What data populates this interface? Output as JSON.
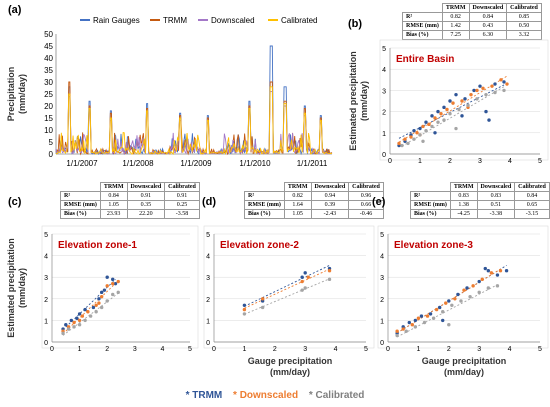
{
  "panels": {
    "a": "(a)",
    "b": "(b)",
    "c": "(c)",
    "d": "(d)",
    "e": "(e)"
  },
  "stats_headers": [
    "TRMM",
    "Downscaled",
    "Calibrated"
  ],
  "stats": {
    "b": {
      "rows": [
        {
          "name": "R²",
          "vals": [
            "0.82",
            "0.84",
            "0.85"
          ]
        },
        {
          "name": "RMSE (mm)",
          "vals": [
            "1.42",
            "0.43",
            "0.50"
          ]
        },
        {
          "name": "Bias (%)",
          "vals": [
            "7.25",
            "6.30",
            "3.32"
          ]
        }
      ]
    },
    "c": {
      "rows": [
        {
          "name": "R²",
          "vals": [
            "0.84",
            "0.91",
            "0.91"
          ]
        },
        {
          "name": "RMSE (mm)",
          "vals": [
            "1.05",
            "0.35",
            "0.25"
          ]
        },
        {
          "name": "Bias (%)",
          "vals": [
            "23.93",
            "22.20",
            "-3.58"
          ]
        }
      ]
    },
    "d": {
      "rows": [
        {
          "name": "R²",
          "vals": [
            "0.82",
            "0.94",
            "0.96"
          ]
        },
        {
          "name": "RMSE (mm)",
          "vals": [
            "1.64",
            "0.39",
            "0.66"
          ]
        },
        {
          "name": "Bias (%)",
          "vals": [
            "1.05",
            "-2.43",
            "-0.46"
          ]
        }
      ]
    },
    "e": {
      "rows": [
        {
          "name": "R²",
          "vals": [
            "0.83",
            "0.83",
            "0.84"
          ]
        },
        {
          "name": "RMSE (mm)",
          "vals": [
            "1.38",
            "0.51",
            "0.65"
          ]
        },
        {
          "name": "Bias (%)",
          "vals": [
            "-4.25",
            "-3.38",
            "-3.15"
          ]
        }
      ]
    }
  },
  "bottom_legend": [
    "* TRMM",
    "* Downscaled",
    "* Calibrated"
  ],
  "colors": {
    "gauge": "#4472C4",
    "trmm": "#C55A11",
    "downscaled": "#A478C8",
    "calibrated": "#FFC000",
    "trmm_pt": "#2F5597",
    "down_pt": "#ED7D31",
    "cal_pt": "#A5A5A5",
    "title_red": "#C00000",
    "grid": "#D9D9D9"
  },
  "chart_data": [
    {
      "type": "line",
      "id": "a",
      "title": "",
      "xlabel": "",
      "ylabel": "Precipitation\n(mm/day)",
      "ylim": [
        0,
        50
      ],
      "yticks": [
        0,
        5,
        10,
        15,
        20,
        25,
        30,
        35,
        40,
        45,
        50
      ],
      "xticks": [
        "1/1/2007",
        "1/1/2008",
        "1/1/2009",
        "1/1/2010",
        "1/1/2011"
      ],
      "legend": [
        "Rain Gauges",
        "TRMM",
        "Downscaled",
        "Calibrated"
      ],
      "legend_placement": "top",
      "series": [
        {
          "name": "Rain Gauges",
          "peaks": [
            [
              0.05,
              28
            ],
            [
              0.12,
              22
            ],
            [
              0.2,
              18
            ],
            [
              0.33,
              21
            ],
            [
              0.45,
              17
            ],
            [
              0.55,
              16
            ],
            [
              0.7,
              22
            ],
            [
              0.78,
              45
            ],
            [
              0.83,
              28
            ],
            [
              0.9,
              20
            ],
            [
              0.96,
              16
            ]
          ]
        },
        {
          "name": "TRMM",
          "peaks": [
            [
              0.05,
              30
            ],
            [
              0.12,
              20
            ],
            [
              0.2,
              17
            ],
            [
              0.33,
              19
            ],
            [
              0.45,
              16
            ],
            [
              0.55,
              15
            ],
            [
              0.7,
              20
            ],
            [
              0.78,
              30
            ],
            [
              0.83,
              22
            ],
            [
              0.9,
              19
            ],
            [
              0.96,
              15
            ]
          ]
        },
        {
          "name": "Downscaled",
          "peaks": [
            [
              0.05,
              24
            ],
            [
              0.12,
              18
            ],
            [
              0.2,
              14
            ],
            [
              0.33,
              17
            ],
            [
              0.45,
              14
            ],
            [
              0.55,
              13
            ],
            [
              0.7,
              18
            ],
            [
              0.78,
              26
            ],
            [
              0.83,
              20
            ],
            [
              0.9,
              16
            ],
            [
              0.96,
              13
            ]
          ]
        },
        {
          "name": "Calibrated",
          "peaks": [
            [
              0.05,
              25
            ],
            [
              0.12,
              19
            ],
            [
              0.2,
              15
            ],
            [
              0.33,
              18
            ],
            [
              0.45,
              15
            ],
            [
              0.55,
              14
            ],
            [
              0.7,
              19
            ],
            [
              0.78,
              28
            ],
            [
              0.83,
              21
            ],
            [
              0.9,
              17
            ],
            [
              0.96,
              14
            ]
          ]
        }
      ]
    },
    {
      "type": "scatter",
      "id": "b",
      "title": "Entire Basin",
      "xlabel": "",
      "ylabel": "Estimated precipitation\n(mm/day)",
      "xlim": [
        0,
        5
      ],
      "ylim": [
        0,
        5
      ],
      "series": [
        {
          "name": "TRMM",
          "points": [
            [
              0.3,
              0.4
            ],
            [
              0.5,
              0.6
            ],
            [
              0.7,
              0.9
            ],
            [
              0.8,
              1.1
            ],
            [
              1.0,
              1.2
            ],
            [
              1.2,
              1.5
            ],
            [
              1.4,
              1.8
            ],
            [
              1.6,
              2.0
            ],
            [
              1.8,
              2.2
            ],
            [
              2.0,
              2.5
            ],
            [
              2.2,
              2.8
            ],
            [
              2.5,
              2.6
            ],
            [
              2.8,
              3.0
            ],
            [
              3.0,
              3.2
            ],
            [
              3.2,
              2.0
            ],
            [
              3.3,
              1.6
            ],
            [
              3.5,
              3.3
            ],
            [
              3.8,
              3.4
            ],
            [
              1.5,
              1.0
            ],
            [
              2.4,
              1.8
            ]
          ]
        },
        {
          "name": "Downscaled",
          "points": [
            [
              0.3,
              0.5
            ],
            [
              0.5,
              0.7
            ],
            [
              0.7,
              0.8
            ],
            [
              0.9,
              1.0
            ],
            [
              1.1,
              1.3
            ],
            [
              1.3,
              1.4
            ],
            [
              1.5,
              1.7
            ],
            [
              1.7,
              1.9
            ],
            [
              1.9,
              2.1
            ],
            [
              2.1,
              2.4
            ],
            [
              2.4,
              2.5
            ],
            [
              2.7,
              2.8
            ],
            [
              2.9,
              3.0
            ],
            [
              3.1,
              3.1
            ],
            [
              3.4,
              3.2
            ],
            [
              3.7,
              3.5
            ],
            [
              3.9,
              3.3
            ],
            [
              1.0,
              0.9
            ],
            [
              2.6,
              2.2
            ]
          ]
        },
        {
          "name": "Calibrated",
          "points": [
            [
              0.4,
              0.4
            ],
            [
              0.6,
              0.5
            ],
            [
              0.8,
              0.7
            ],
            [
              1.0,
              0.9
            ],
            [
              1.2,
              1.1
            ],
            [
              1.4,
              1.3
            ],
            [
              1.6,
              1.5
            ],
            [
              1.8,
              1.6
            ],
            [
              2.0,
              1.9
            ],
            [
              2.3,
              2.1
            ],
            [
              2.6,
              2.3
            ],
            [
              2.9,
              2.6
            ],
            [
              3.2,
              2.8
            ],
            [
              3.5,
              2.9
            ],
            [
              3.8,
              3.0
            ],
            [
              2.2,
              1.2
            ],
            [
              1.1,
              0.6
            ]
          ]
        }
      ]
    },
    {
      "type": "scatter",
      "id": "c",
      "title": "Elevation zone-1",
      "xlabel": "",
      "ylabel": "Estimated precipitation\n(mm/day)",
      "xlim": [
        0,
        5
      ],
      "ylim": [
        0,
        5
      ],
      "series": [
        {
          "name": "TRMM",
          "points": [
            [
              0.4,
              0.6
            ],
            [
              0.5,
              0.8
            ],
            [
              0.7,
              1.0
            ],
            [
              0.9,
              1.1
            ],
            [
              1.0,
              1.3
            ],
            [
              1.2,
              1.5
            ],
            [
              1.5,
              1.6
            ],
            [
              1.7,
              2.0
            ],
            [
              1.8,
              2.3
            ],
            [
              2.0,
              3.0
            ],
            [
              2.2,
              2.9
            ],
            [
              2.3,
              2.7
            ],
            [
              1.9,
              2.4
            ]
          ]
        },
        {
          "name": "Downscaled",
          "points": [
            [
              0.4,
              0.5
            ],
            [
              0.6,
              0.7
            ],
            [
              0.8,
              0.9
            ],
            [
              1.0,
              1.0
            ],
            [
              1.1,
              1.2
            ],
            [
              1.3,
              1.4
            ],
            [
              1.6,
              1.7
            ],
            [
              1.8,
              2.1
            ],
            [
              2.0,
              2.6
            ],
            [
              2.2,
              2.7
            ],
            [
              2.4,
              2.8
            ],
            [
              1.7,
              1.8
            ]
          ]
        },
        {
          "name": "Calibrated",
          "points": [
            [
              0.4,
              0.4
            ],
            [
              0.6,
              0.6
            ],
            [
              0.8,
              0.7
            ],
            [
              1.0,
              0.8
            ],
            [
              1.2,
              1.0
            ],
            [
              1.4,
              1.2
            ],
            [
              1.6,
              1.4
            ],
            [
              1.8,
              1.6
            ],
            [
              2.0,
              1.9
            ],
            [
              2.2,
              2.2
            ],
            [
              2.4,
              2.3
            ]
          ]
        }
      ]
    },
    {
      "type": "scatter",
      "id": "d",
      "title": "Elevation zone-2",
      "xlabel": "Gauge precipitation\n(mm/day)",
      "ylabel": "",
      "xlim": [
        0,
        5
      ],
      "ylim": [
        0,
        5
      ],
      "series": [
        {
          "name": "TRMM",
          "points": [
            [
              1.0,
              1.7
            ],
            [
              1.6,
              1.9
            ],
            [
              2.9,
              3.0
            ],
            [
              3.0,
              3.2
            ],
            [
              3.8,
              3.4
            ]
          ]
        },
        {
          "name": "Downscaled",
          "points": [
            [
              1.0,
              1.5
            ],
            [
              1.6,
              2.0
            ],
            [
              2.9,
              2.8
            ],
            [
              3.1,
              3.0
            ],
            [
              3.8,
              3.3
            ]
          ]
        },
        {
          "name": "Calibrated",
          "points": [
            [
              1.0,
              1.3
            ],
            [
              1.6,
              1.6
            ],
            [
              2.9,
              2.4
            ],
            [
              3.0,
              2.5
            ],
            [
              3.8,
              2.9
            ]
          ]
        }
      ]
    },
    {
      "type": "scatter",
      "id": "e",
      "title": "Elevation zone-3",
      "xlabel": "Gauge precipitation\n(mm/day)",
      "ylabel": "",
      "xlim": [
        0,
        5
      ],
      "ylim": [
        0,
        5
      ],
      "series": [
        {
          "name": "TRMM",
          "points": [
            [
              0.3,
              0.4
            ],
            [
              0.5,
              0.7
            ],
            [
              0.7,
              0.9
            ],
            [
              0.9,
              1.0
            ],
            [
              1.1,
              1.2
            ],
            [
              1.4,
              1.3
            ],
            [
              1.7,
              1.6
            ],
            [
              2.0,
              1.9
            ],
            [
              2.3,
              2.2
            ],
            [
              2.6,
              2.5
            ],
            [
              3.0,
              2.8
            ],
            [
              3.2,
              3.4
            ],
            [
              3.3,
              3.3
            ],
            [
              3.6,
              3.1
            ],
            [
              3.9,
              3.3
            ],
            [
              1.8,
              1.0
            ]
          ]
        },
        {
          "name": "Downscaled",
          "points": [
            [
              0.3,
              0.5
            ],
            [
              0.5,
              0.6
            ],
            [
              0.8,
              0.8
            ],
            [
              1.0,
              1.1
            ],
            [
              1.3,
              1.2
            ],
            [
              1.6,
              1.5
            ],
            [
              1.9,
              1.8
            ],
            [
              2.2,
              2.0
            ],
            [
              2.5,
              2.4
            ],
            [
              2.8,
              2.6
            ],
            [
              3.1,
              2.9
            ],
            [
              3.4,
              3.2
            ],
            [
              3.7,
              3.3
            ]
          ]
        },
        {
          "name": "Calibrated",
          "points": [
            [
              0.3,
              0.3
            ],
            [
              0.6,
              0.5
            ],
            [
              0.9,
              0.7
            ],
            [
              1.2,
              0.9
            ],
            [
              1.5,
              1.1
            ],
            [
              1.8,
              1.4
            ],
            [
              2.1,
              1.7
            ],
            [
              2.4,
              1.9
            ],
            [
              2.7,
              2.1
            ],
            [
              3.0,
              2.3
            ],
            [
              3.3,
              2.5
            ],
            [
              3.6,
              2.6
            ],
            [
              2.0,
              0.8
            ]
          ]
        }
      ]
    }
  ]
}
